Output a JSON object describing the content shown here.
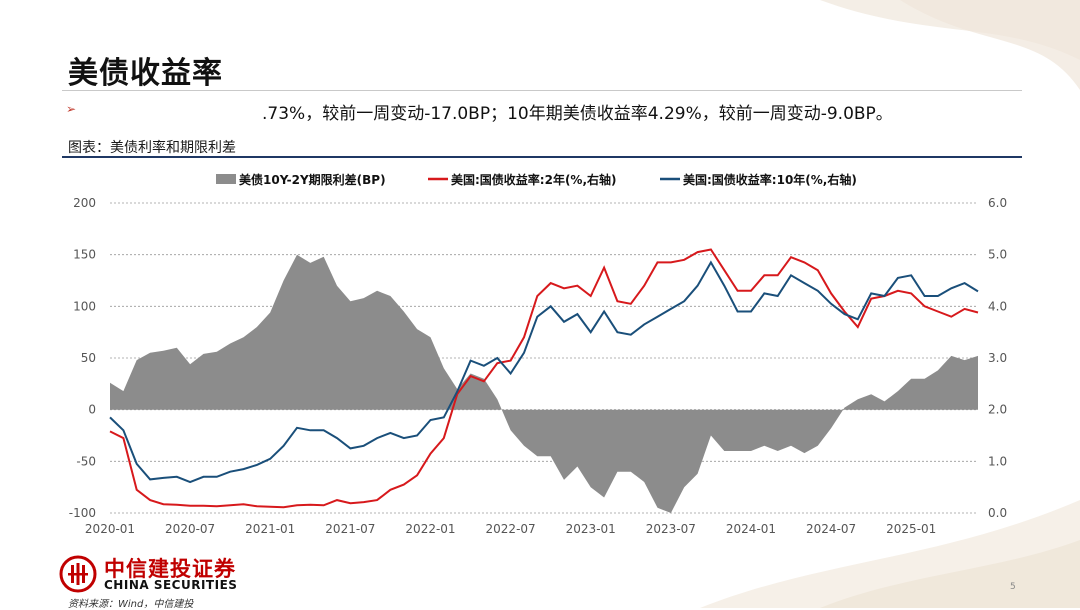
{
  "page": {
    "title": "美债收益率",
    "subtext": ".73%，较前一周变动-17.0BP；10年期美债收益率4.29%，较前一周变动-9.0BP。",
    "caption": "图表：美债利率和期限利差",
    "source": "资料来源：Wind，中信建投",
    "page_number": "5",
    "logo_cn": "中信建投证券",
    "logo_en": "CHINA SECURITIES"
  },
  "colors": {
    "spread": "#8c8c8c",
    "y2": "#d7191c",
    "y10": "#1a4f7a",
    "brand": "#c00000"
  },
  "chart_data": {
    "type": "area+line",
    "legend": [
      "美债10Y-2Y期限利差(BP)",
      "美国:国债收益率:2年(%,右轴)",
      "美国:国债收益率:10年(%,右轴)"
    ],
    "legend_position": "top",
    "grid": "horizontal-dashed",
    "x_ticks": [
      "2020-01",
      "2020-07",
      "2021-01",
      "2021-07",
      "2022-01",
      "2022-07",
      "2023-01",
      "2023-07",
      "2024-01",
      "2024-07",
      "2025-01"
    ],
    "x_range": [
      "2020-01",
      "2025-06"
    ],
    "y_left": {
      "ticks": [
        "200",
        "150",
        "100",
        "50",
        "0",
        "-50",
        "-100"
      ],
      "range": [
        -100,
        200
      ]
    },
    "y_right": {
      "ticks": [
        "6.0",
        "5.0",
        "4.0",
        "3.0",
        "2.0",
        "1.0",
        "0.0"
      ],
      "range": [
        0,
        6
      ]
    },
    "series": [
      {
        "name": "美债10Y-2Y期限利差(BP)",
        "axis": "left",
        "type": "area",
        "x": [
          "2020-01",
          "2020-02",
          "2020-03",
          "2020-04",
          "2020-05",
          "2020-06",
          "2020-07",
          "2020-08",
          "2020-09",
          "2020-10",
          "2020-11",
          "2020-12",
          "2021-01",
          "2021-02",
          "2021-03",
          "2021-04",
          "2021-05",
          "2021-06",
          "2021-07",
          "2021-08",
          "2021-09",
          "2021-10",
          "2021-11",
          "2021-12",
          "2022-01",
          "2022-02",
          "2022-03",
          "2022-04",
          "2022-05",
          "2022-06",
          "2022-07",
          "2022-08",
          "2022-09",
          "2022-10",
          "2022-11",
          "2022-12",
          "2023-01",
          "2023-02",
          "2023-03",
          "2023-04",
          "2023-05",
          "2023-06",
          "2023-07",
          "2023-08",
          "2023-09",
          "2023-10",
          "2023-11",
          "2023-12",
          "2024-01",
          "2024-02",
          "2024-03",
          "2024-04",
          "2024-05",
          "2024-06",
          "2024-07",
          "2024-08",
          "2024-09",
          "2024-10",
          "2024-11",
          "2024-12",
          "2025-01",
          "2025-02",
          "2025-03",
          "2025-04",
          "2025-05",
          "2025-06"
        ],
        "values": [
          26,
          18,
          48,
          55,
          57,
          60,
          44,
          54,
          56,
          64,
          70,
          80,
          94,
          125,
          150,
          142,
          148,
          120,
          105,
          108,
          115,
          110,
          95,
          78,
          70,
          40,
          20,
          35,
          30,
          10,
          -20,
          -35,
          -45,
          -45,
          -68,
          -55,
          -75,
          -85,
          -60,
          -60,
          -70,
          -95,
          -100,
          -75,
          -62,
          -25,
          -40,
          -40,
          -40,
          -35,
          -40,
          -35,
          -42,
          -35,
          -18,
          2,
          10,
          15,
          8,
          18,
          30,
          30,
          38,
          52,
          48,
          52
        ]
      },
      {
        "name": "美国:国债收益率:2年(%,右轴)",
        "axis": "right",
        "type": "line",
        "x": [
          "2020-01",
          "2020-02",
          "2020-03",
          "2020-04",
          "2020-05",
          "2020-06",
          "2020-07",
          "2020-08",
          "2020-09",
          "2020-10",
          "2020-11",
          "2020-12",
          "2021-01",
          "2021-02",
          "2021-03",
          "2021-04",
          "2021-05",
          "2021-06",
          "2021-07",
          "2021-08",
          "2021-09",
          "2021-10",
          "2021-11",
          "2021-12",
          "2022-01",
          "2022-02",
          "2022-03",
          "2022-04",
          "2022-05",
          "2022-06",
          "2022-07",
          "2022-08",
          "2022-09",
          "2022-10",
          "2022-11",
          "2022-12",
          "2023-01",
          "2023-02",
          "2023-03",
          "2023-04",
          "2023-05",
          "2023-06",
          "2023-07",
          "2023-08",
          "2023-09",
          "2023-10",
          "2023-11",
          "2023-12",
          "2024-01",
          "2024-02",
          "2024-03",
          "2024-04",
          "2024-05",
          "2024-06",
          "2024-07",
          "2024-08",
          "2024-09",
          "2024-10",
          "2024-11",
          "2024-12",
          "2025-01",
          "2025-02",
          "2025-03",
          "2025-04",
          "2025-05",
          "2025-06"
        ],
        "values": [
          1.58,
          1.45,
          0.45,
          0.25,
          0.17,
          0.16,
          0.14,
          0.14,
          0.13,
          0.15,
          0.17,
          0.13,
          0.12,
          0.11,
          0.15,
          0.16,
          0.15,
          0.25,
          0.19,
          0.21,
          0.25,
          0.45,
          0.55,
          0.73,
          1.15,
          1.45,
          2.3,
          2.65,
          2.55,
          2.9,
          2.95,
          3.4,
          4.2,
          4.45,
          4.35,
          4.4,
          4.2,
          4.75,
          4.1,
          4.05,
          4.4,
          4.85,
          4.85,
          4.9,
          5.05,
          5.1,
          4.7,
          4.3,
          4.3,
          4.6,
          4.6,
          4.95,
          4.85,
          4.7,
          4.25,
          3.9,
          3.6,
          4.15,
          4.2,
          4.3,
          4.25,
          4.0,
          3.9,
          3.8,
          3.95,
          3.88
        ]
      },
      {
        "name": "美国:国债收益率:10年(%,右轴)",
        "axis": "right",
        "type": "line",
        "x": [
          "2020-01",
          "2020-02",
          "2020-03",
          "2020-04",
          "2020-05",
          "2020-06",
          "2020-07",
          "2020-08",
          "2020-09",
          "2020-10",
          "2020-11",
          "2020-12",
          "2021-01",
          "2021-02",
          "2021-03",
          "2021-04",
          "2021-05",
          "2021-06",
          "2021-07",
          "2021-08",
          "2021-09",
          "2021-10",
          "2021-11",
          "2021-12",
          "2022-01",
          "2022-02",
          "2022-03",
          "2022-04",
          "2022-05",
          "2022-06",
          "2022-07",
          "2022-08",
          "2022-09",
          "2022-10",
          "2022-11",
          "2022-12",
          "2023-01",
          "2023-02",
          "2023-03",
          "2023-04",
          "2023-05",
          "2023-06",
          "2023-07",
          "2023-08",
          "2023-09",
          "2023-10",
          "2023-11",
          "2023-12",
          "2024-01",
          "2024-02",
          "2024-03",
          "2024-04",
          "2024-05",
          "2024-06",
          "2024-07",
          "2024-08",
          "2024-09",
          "2024-10",
          "2024-11",
          "2024-12",
          "2025-01",
          "2025-02",
          "2025-03",
          "2025-04",
          "2025-05",
          "2025-06"
        ],
        "values": [
          1.85,
          1.6,
          0.95,
          0.65,
          0.68,
          0.7,
          0.6,
          0.7,
          0.7,
          0.8,
          0.85,
          0.93,
          1.05,
          1.3,
          1.65,
          1.6,
          1.6,
          1.45,
          1.25,
          1.3,
          1.45,
          1.55,
          1.45,
          1.5,
          1.8,
          1.85,
          2.35,
          2.95,
          2.85,
          3.0,
          2.7,
          3.1,
          3.8,
          4.0,
          3.7,
          3.85,
          3.5,
          3.9,
          3.5,
          3.45,
          3.65,
          3.8,
          3.95,
          4.1,
          4.4,
          4.85,
          4.4,
          3.9,
          3.9,
          4.25,
          4.2,
          4.6,
          4.45,
          4.3,
          4.05,
          3.85,
          3.75,
          4.25,
          4.2,
          4.55,
          4.6,
          4.2,
          4.2,
          4.35,
          4.45,
          4.29
        ]
      }
    ]
  }
}
